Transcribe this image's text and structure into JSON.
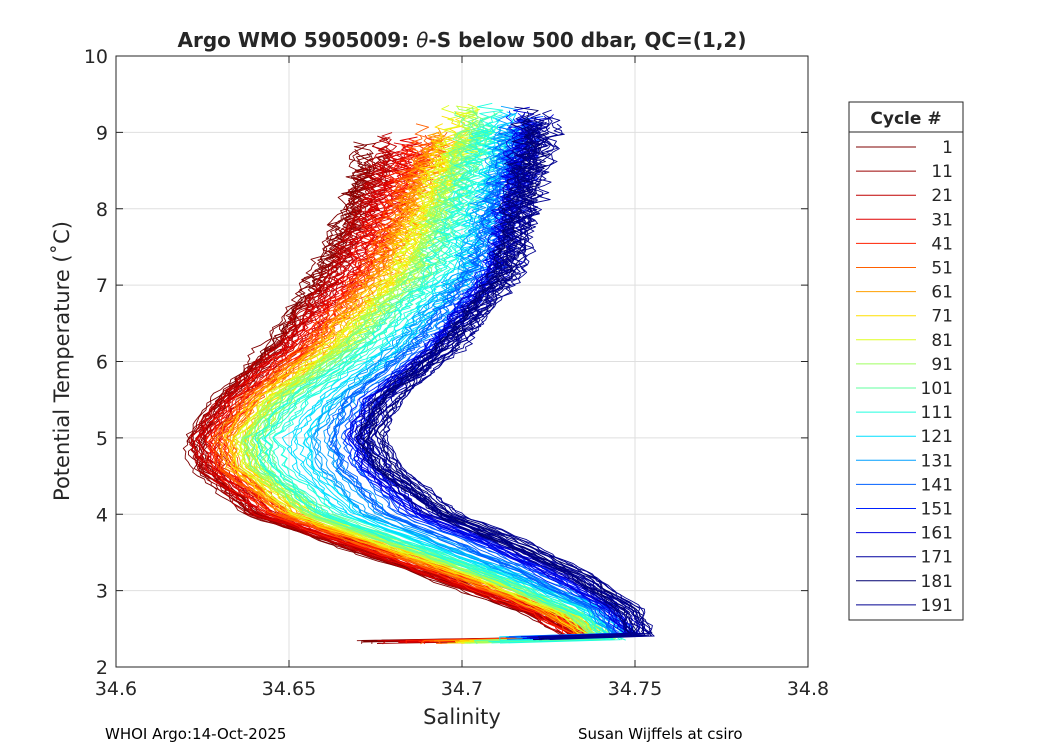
{
  "chart_data": {
    "type": "line",
    "title": "Argo WMO 5905009: θ-S below 500 dbar,  QC=(1,2)",
    "title_parts": {
      "prefix": "Argo WMO 5905009: ",
      "symbol": "θ",
      "suffix": "-S below 500 dbar,  QC=(1,2)"
    },
    "xlabel": "Salinity",
    "ylabel": "Potential Temperature (˚C)",
    "xlim": [
      34.6,
      34.8
    ],
    "ylim": [
      2,
      10
    ],
    "xticks": [
      34.6,
      34.65,
      34.7,
      34.75,
      34.8
    ],
    "xtick_labels": [
      "34.6",
      "34.65",
      "34.7",
      "34.75",
      "34.8"
    ],
    "yticks": [
      2,
      3,
      4,
      5,
      6,
      7,
      8,
      9,
      10
    ],
    "ytick_labels": [
      "2",
      "3",
      "4",
      "5",
      "6",
      "7",
      "8",
      "9",
      "10"
    ],
    "grid": true,
    "legend_position": "outside-right",
    "legend_title": "Cycle #",
    "series": [
      {
        "name": "1",
        "color": "#7f0000",
        "x": [
          34.735,
          34.72,
          34.69,
          34.665,
          34.64,
          34.625,
          34.623,
          34.63,
          34.645,
          34.66,
          34.672
        ],
        "y": [
          2.35,
          2.7,
          3.2,
          3.6,
          4.0,
          4.6,
          5.0,
          5.5,
          6.2,
          7.2,
          8.5
        ]
      },
      {
        "name": "11",
        "color": "#9b0000",
        "x": [
          34.736,
          34.722,
          34.692,
          34.667,
          34.641,
          34.626,
          34.624,
          34.632,
          34.648,
          34.663,
          34.676
        ],
        "y": [
          2.35,
          2.7,
          3.2,
          3.6,
          4.0,
          4.6,
          5.0,
          5.5,
          6.2,
          7.2,
          8.6
        ]
      },
      {
        "name": "21",
        "color": "#bf0000",
        "x": [
          34.736,
          34.723,
          34.694,
          34.669,
          34.643,
          34.628,
          34.625,
          34.633,
          34.65,
          34.666,
          34.68
        ],
        "y": [
          2.35,
          2.7,
          3.2,
          3.6,
          4.0,
          4.6,
          5.0,
          5.5,
          6.2,
          7.2,
          8.7
        ]
      },
      {
        "name": "31",
        "color": "#df0000",
        "x": [
          34.737,
          34.724,
          34.695,
          34.67,
          34.645,
          34.629,
          34.627,
          34.635,
          34.652,
          34.669,
          34.684
        ],
        "y": [
          2.35,
          2.7,
          3.2,
          3.6,
          4.0,
          4.6,
          5.0,
          5.5,
          6.2,
          7.2,
          8.7
        ]
      },
      {
        "name": "41",
        "color": "#ff2000",
        "x": [
          34.737,
          34.725,
          34.697,
          34.672,
          34.647,
          34.631,
          34.629,
          34.637,
          34.655,
          34.672,
          34.688
        ],
        "y": [
          2.35,
          2.7,
          3.2,
          3.6,
          4.0,
          4.6,
          5.0,
          5.5,
          6.2,
          7.2,
          8.8
        ]
      },
      {
        "name": "51",
        "color": "#ff6000",
        "x": [
          34.738,
          34.727,
          34.699,
          34.674,
          34.649,
          34.633,
          34.631,
          34.639,
          34.657,
          34.675,
          34.691
        ],
        "y": [
          2.35,
          2.7,
          3.2,
          3.6,
          4.0,
          4.6,
          5.0,
          5.5,
          6.2,
          7.2,
          8.8
        ]
      },
      {
        "name": "61",
        "color": "#ff9f00",
        "x": [
          34.739,
          34.728,
          34.701,
          34.676,
          34.651,
          34.635,
          34.633,
          34.641,
          34.66,
          34.678,
          34.694
        ],
        "y": [
          2.35,
          2.7,
          3.2,
          3.6,
          4.0,
          4.6,
          5.0,
          5.5,
          6.2,
          7.2,
          8.9
        ]
      },
      {
        "name": "71",
        "color": "#ffdf00",
        "x": [
          34.74,
          34.729,
          34.703,
          34.678,
          34.653,
          34.637,
          34.635,
          34.643,
          34.662,
          34.681,
          34.697
        ],
        "y": [
          2.35,
          2.7,
          3.2,
          3.6,
          4.0,
          4.6,
          5.0,
          5.5,
          6.2,
          7.2,
          8.9
        ]
      },
      {
        "name": "81",
        "color": "#dfff20",
        "x": [
          34.741,
          34.731,
          34.705,
          34.68,
          34.655,
          34.639,
          34.637,
          34.645,
          34.665,
          34.684,
          34.7
        ],
        "y": [
          2.35,
          2.7,
          3.2,
          3.6,
          4.0,
          4.6,
          5.0,
          5.5,
          6.2,
          7.2,
          9.0
        ]
      },
      {
        "name": "91",
        "color": "#9fff60",
        "x": [
          34.742,
          34.732,
          34.707,
          34.682,
          34.657,
          34.641,
          34.639,
          34.647,
          34.667,
          34.687,
          34.703
        ],
        "y": [
          2.35,
          2.7,
          3.2,
          3.6,
          4.0,
          4.6,
          5.0,
          5.5,
          6.2,
          7.2,
          9.0
        ]
      },
      {
        "name": "101",
        "color": "#60ff9f",
        "x": [
          34.743,
          34.734,
          34.709,
          34.684,
          34.659,
          34.643,
          34.641,
          34.65,
          34.67,
          34.69,
          34.705
        ],
        "y": [
          2.35,
          2.7,
          3.2,
          3.6,
          4.0,
          4.6,
          5.0,
          5.5,
          6.2,
          7.2,
          9.0
        ]
      },
      {
        "name": "111",
        "color": "#20ffdf",
        "x": [
          34.744,
          34.735,
          34.711,
          34.687,
          34.662,
          34.646,
          34.644,
          34.653,
          34.674,
          34.694,
          34.708
        ],
        "y": [
          2.35,
          2.7,
          3.2,
          3.6,
          4.0,
          4.6,
          5.0,
          5.5,
          6.2,
          7.2,
          9.0
        ]
      },
      {
        "name": "121",
        "color": "#00dfff",
        "x": [
          34.745,
          34.737,
          34.714,
          34.691,
          34.668,
          34.654,
          34.652,
          34.66,
          34.68,
          34.7,
          34.713
        ],
        "y": [
          2.4,
          2.75,
          3.2,
          3.6,
          4.0,
          4.6,
          5.0,
          5.5,
          6.2,
          7.2,
          9.0
        ]
      },
      {
        "name": "131",
        "color": "#009fff",
        "x": [
          34.747,
          34.739,
          34.718,
          34.697,
          34.675,
          34.662,
          34.66,
          34.666,
          34.684,
          34.703,
          34.715
        ],
        "y": [
          2.4,
          2.75,
          3.2,
          3.6,
          4.0,
          4.6,
          5.0,
          5.5,
          6.2,
          7.2,
          9.0
        ]
      },
      {
        "name": "141",
        "color": "#0060ff",
        "x": [
          34.748,
          34.741,
          34.722,
          34.702,
          34.681,
          34.668,
          34.665,
          34.67,
          34.688,
          34.706,
          34.717
        ],
        "y": [
          2.4,
          2.75,
          3.2,
          3.6,
          4.0,
          4.6,
          5.0,
          5.5,
          6.2,
          7.2,
          9.0
        ]
      },
      {
        "name": "151",
        "color": "#0020ff",
        "x": [
          34.749,
          34.743,
          34.726,
          34.707,
          34.686,
          34.672,
          34.669,
          34.674,
          34.692,
          34.709,
          34.719
        ],
        "y": [
          2.4,
          2.75,
          3.2,
          3.6,
          4.0,
          4.6,
          5.0,
          5.5,
          6.2,
          7.2,
          9.0
        ]
      },
      {
        "name": "161",
        "color": "#0000df",
        "x": [
          34.75,
          34.745,
          34.729,
          34.711,
          34.69,
          34.675,
          34.671,
          34.676,
          34.694,
          34.711,
          34.72
        ],
        "y": [
          2.4,
          2.75,
          3.2,
          3.6,
          4.0,
          4.6,
          5.0,
          5.5,
          6.2,
          7.2,
          9.0
        ]
      },
      {
        "name": "171",
        "color": "#00009f",
        "x": [
          34.751,
          34.747,
          34.732,
          34.714,
          34.693,
          34.677,
          34.672,
          34.677,
          34.695,
          34.712,
          34.721
        ],
        "y": [
          2.4,
          2.75,
          3.2,
          3.6,
          4.0,
          4.6,
          5.0,
          5.5,
          6.2,
          7.2,
          9.0
        ]
      },
      {
        "name": "181",
        "color": "#000070",
        "x": [
          34.752,
          34.748,
          34.734,
          34.716,
          34.695,
          34.678,
          34.673,
          34.678,
          34.696,
          34.713,
          34.722
        ],
        "y": [
          2.4,
          2.75,
          3.2,
          3.6,
          4.0,
          4.6,
          5.0,
          5.5,
          6.2,
          7.2,
          9.0
        ]
      },
      {
        "name": "191",
        "color": "#000090",
        "x": [
          34.752,
          34.748,
          34.734,
          34.717,
          34.696,
          34.679,
          34.674,
          34.679,
          34.697,
          34.714,
          34.723
        ],
        "y": [
          2.4,
          2.75,
          3.2,
          3.6,
          4.0,
          4.6,
          5.0,
          5.5,
          6.2,
          7.2,
          9.0
        ]
      }
    ]
  },
  "footer": {
    "left": "WHOI Argo:14-Oct-2025",
    "right": "Susan Wijffels at csiro"
  }
}
